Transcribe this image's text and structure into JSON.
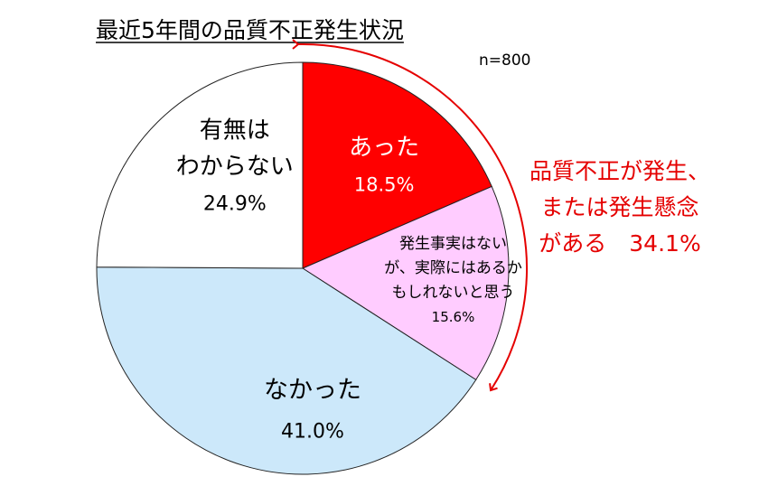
{
  "chart_data": {
    "type": "pie",
    "title": "最近5年間の品質不正発生状況",
    "note": "n=800",
    "slices": [
      {
        "label_lines": [
          "あった"
        ],
        "value": 18.5,
        "value_label": "18.5%",
        "color": "#ff0000"
      },
      {
        "label_lines": [
          "発生事実はない",
          "が、実際にはあるか",
          "もしれないと思う"
        ],
        "value": 15.6,
        "value_label": "15.6%",
        "color": "#ffccff"
      },
      {
        "label_lines": [
          "なかった"
        ],
        "value": 41.0,
        "value_label": "41.0%",
        "color": "#cce8fa"
      },
      {
        "label_lines": [
          "有無は",
          "わからない"
        ],
        "value": 24.9,
        "value_label": "24.9%",
        "color": "#ffffff"
      }
    ],
    "annotation": {
      "lines": [
        "品質不正が発生、",
        "または発生懸念",
        "がある　34.1%"
      ],
      "color": "#e50000"
    }
  }
}
